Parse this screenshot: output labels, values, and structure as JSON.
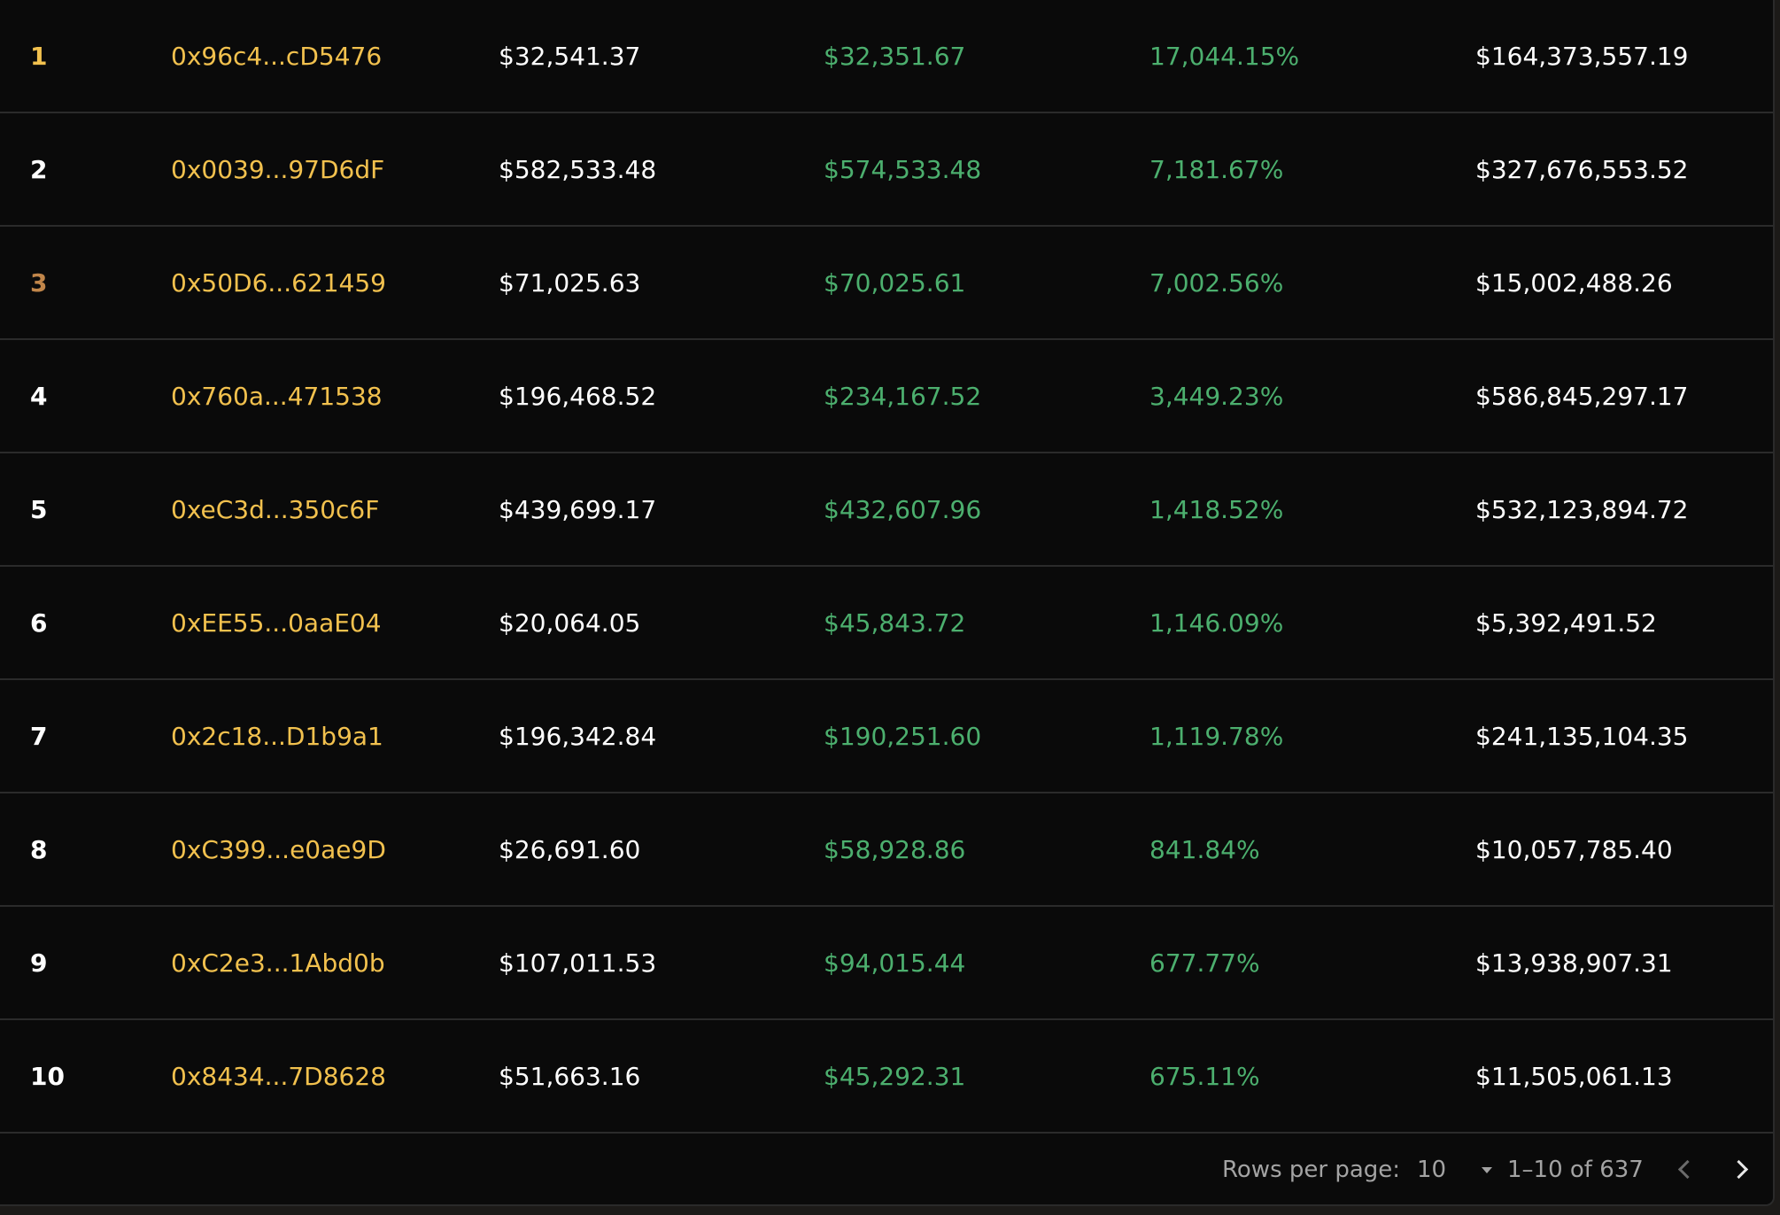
{
  "table": {
    "rows": [
      {
        "rank": "1",
        "rank_color": "#f2c14e",
        "address": "0x96c4...cD5476",
        "buy": "$32,541.37",
        "pnl": "$32,351.67",
        "roi": "17,044.15%",
        "volume": "$164,373,557.19"
      },
      {
        "rank": "2",
        "rank_color": "#ffffff",
        "address": "0x0039...97D6dF",
        "buy": "$582,533.48",
        "pnl": "$574,533.48",
        "roi": "7,181.67%",
        "volume": "$327,676,553.52"
      },
      {
        "rank": "3",
        "rank_color": "#c1864a",
        "address": "0x50D6...621459",
        "buy": "$71,025.63",
        "pnl": "$70,025.61",
        "roi": "7,002.56%",
        "volume": "$15,002,488.26"
      },
      {
        "rank": "4",
        "rank_color": "#ffffff",
        "address": "0x760a...471538",
        "buy": "$196,468.52",
        "pnl": "$234,167.52",
        "roi": "3,449.23%",
        "volume": "$586,845,297.17"
      },
      {
        "rank": "5",
        "rank_color": "#ffffff",
        "address": "0xeC3d...350c6F",
        "buy": "$439,699.17",
        "pnl": "$432,607.96",
        "roi": "1,418.52%",
        "volume": "$532,123,894.72"
      },
      {
        "rank": "6",
        "rank_color": "#ffffff",
        "address": "0xEE55...0aaE04",
        "buy": "$20,064.05",
        "pnl": "$45,843.72",
        "roi": "1,146.09%",
        "volume": "$5,392,491.52"
      },
      {
        "rank": "7",
        "rank_color": "#ffffff",
        "address": "0x2c18...D1b9a1",
        "buy": "$196,342.84",
        "pnl": "$190,251.60",
        "roi": "1,119.78%",
        "volume": "$241,135,104.35"
      },
      {
        "rank": "8",
        "rank_color": "#ffffff",
        "address": "0xC399...e0ae9D",
        "buy": "$26,691.60",
        "pnl": "$58,928.86",
        "roi": "841.84%",
        "volume": "$10,057,785.40"
      },
      {
        "rank": "9",
        "rank_color": "#ffffff",
        "address": "0xC2e3...1Abd0b",
        "buy": "$107,011.53",
        "pnl": "$94,015.44",
        "roi": "677.77%",
        "volume": "$13,938,907.31"
      },
      {
        "rank": "10",
        "rank_color": "#ffffff",
        "address": "0x8434...7D8628",
        "buy": "$51,663.16",
        "pnl": "$45,292.31",
        "roi": "675.11%",
        "volume": "$11,505,061.13"
      }
    ]
  },
  "pagination": {
    "rows_per_page_label": "Rows per page:",
    "rows_per_page_value": "10",
    "range_text": "1–10 of 637",
    "prev_icon": "chevron-left-icon",
    "next_icon": "chevron-right-icon"
  },
  "colors": {
    "address": "#f2c14e",
    "positive": "#4caf6e",
    "text": "#ffffff",
    "muted": "#a3a3a3"
  }
}
